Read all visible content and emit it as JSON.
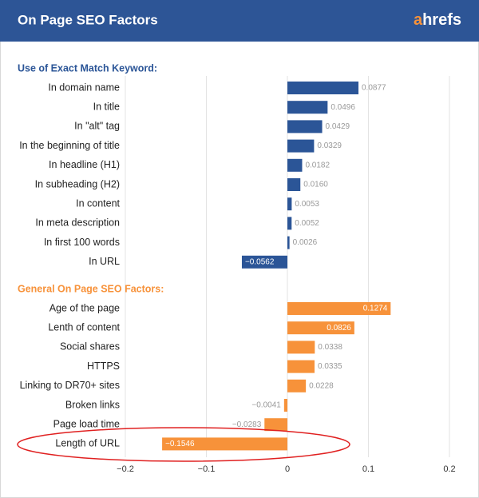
{
  "chart_data": {
    "type": "bar",
    "orientation": "horizontal",
    "title": "On Page SEO Factors",
    "brand": [
      "a",
      "hrefs"
    ],
    "xlim": [
      -0.2,
      0.2
    ],
    "xticks": [
      {
        "value": -0.2,
        "label": "−0.2"
      },
      {
        "value": -0.1,
        "label": "−0.1"
      },
      0,
      0.1,
      0.2
    ],
    "grid": true,
    "groups": [
      {
        "name": "Use of Exact Match Keyword:",
        "color": "#2b5597",
        "categories": [
          "In domain name",
          "In title",
          "In \"alt\" tag",
          "In the beginning of title",
          "In headline (H1)",
          "In subheading (H2)",
          "In content",
          "In meta description",
          "In first 100 words",
          "In URL"
        ],
        "values": [
          0.0877,
          0.0496,
          0.0429,
          0.0329,
          0.0182,
          0.016,
          0.0053,
          0.0052,
          0.0026,
          -0.0562
        ],
        "value_labels": [
          "0.0877",
          "0.0496",
          "0.0429",
          "0.0329",
          "0.0182",
          "0.0160",
          "0.0053",
          "0.0052",
          "0.0026",
          "−0.0562"
        ]
      },
      {
        "name": "General On Page SEO Factors:",
        "color": "#f7923a",
        "categories": [
          "Age of the page",
          "Lenth of content",
          "Social shares",
          "HTTPS",
          "Linking to DR70+ sites",
          "Broken links",
          "Page load time",
          "Length of URL"
        ],
        "values": [
          0.1274,
          0.0826,
          0.0338,
          0.0335,
          0.0228,
          -0.0041,
          -0.0283,
          -0.1546
        ],
        "value_labels": [
          "0.1274",
          "0.0826",
          "0.0338",
          "0.0335",
          "0.0228",
          "−0.0041",
          "−0.0283",
          "−0.1546"
        ]
      }
    ]
  }
}
